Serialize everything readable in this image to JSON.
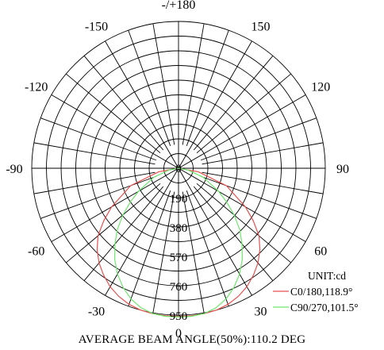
{
  "chart_data": {
    "type": "polar-line",
    "unit_label": "UNIT:cd",
    "angle_labels": [
      "-/+180",
      "150",
      "120",
      "90",
      "60",
      "30",
      "0",
      "-30",
      "-60",
      "-90",
      "-120",
      "-150"
    ],
    "angle_values": [
      180,
      150,
      120,
      90,
      60,
      30,
      0,
      -30,
      -60,
      -90,
      -120,
      -150
    ],
    "radial_labels": [
      "0",
      "190",
      "380",
      "570",
      "760",
      "950"
    ],
    "r_max": 950,
    "series": [
      {
        "name": "C0/180,118.9°",
        "color": "#e8504f",
        "points": [
          [
            -180,
            0
          ],
          [
            -90,
            0
          ],
          [
            -80,
            130
          ],
          [
            -70,
            330
          ],
          [
            -60,
            500
          ],
          [
            -55,
            590
          ],
          [
            -50,
            680
          ],
          [
            -45,
            745
          ],
          [
            -40,
            800
          ],
          [
            -35,
            845
          ],
          [
            -30,
            885
          ],
          [
            -25,
            915
          ],
          [
            -20,
            937
          ],
          [
            -15,
            950
          ],
          [
            -10,
            956
          ],
          [
            -5,
            958
          ],
          [
            0,
            958
          ],
          [
            5,
            958
          ],
          [
            10,
            956
          ],
          [
            15,
            950
          ],
          [
            20,
            937
          ],
          [
            25,
            915
          ],
          [
            30,
            885
          ],
          [
            35,
            845
          ],
          [
            40,
            800
          ],
          [
            45,
            745
          ],
          [
            50,
            680
          ],
          [
            55,
            590
          ],
          [
            60,
            500
          ],
          [
            70,
            330
          ],
          [
            80,
            130
          ],
          [
            90,
            0
          ]
        ]
      },
      {
        "name": "C90/270,101.5°",
        "color": "#6ee86e",
        "points": [
          [
            -180,
            0
          ],
          [
            -90,
            0
          ],
          [
            -80,
            60
          ],
          [
            -70,
            170
          ],
          [
            -60,
            300
          ],
          [
            -55,
            380
          ],
          [
            -50,
            470
          ],
          [
            -45,
            560
          ],
          [
            -40,
            640
          ],
          [
            -35,
            720
          ],
          [
            -30,
            790
          ],
          [
            -25,
            850
          ],
          [
            -20,
            900
          ],
          [
            -15,
            935
          ],
          [
            -10,
            955
          ],
          [
            -5,
            962
          ],
          [
            0,
            962
          ],
          [
            5,
            962
          ],
          [
            10,
            955
          ],
          [
            15,
            935
          ],
          [
            20,
            900
          ],
          [
            25,
            850
          ],
          [
            30,
            790
          ],
          [
            35,
            720
          ],
          [
            40,
            640
          ],
          [
            45,
            560
          ],
          [
            50,
            470
          ],
          [
            55,
            380
          ],
          [
            60,
            300
          ],
          [
            70,
            170
          ],
          [
            80,
            60
          ],
          [
            90,
            0
          ]
        ]
      }
    ],
    "footer": "AVERAGE BEAM ANGLE(50%):110.2 DEG"
  }
}
